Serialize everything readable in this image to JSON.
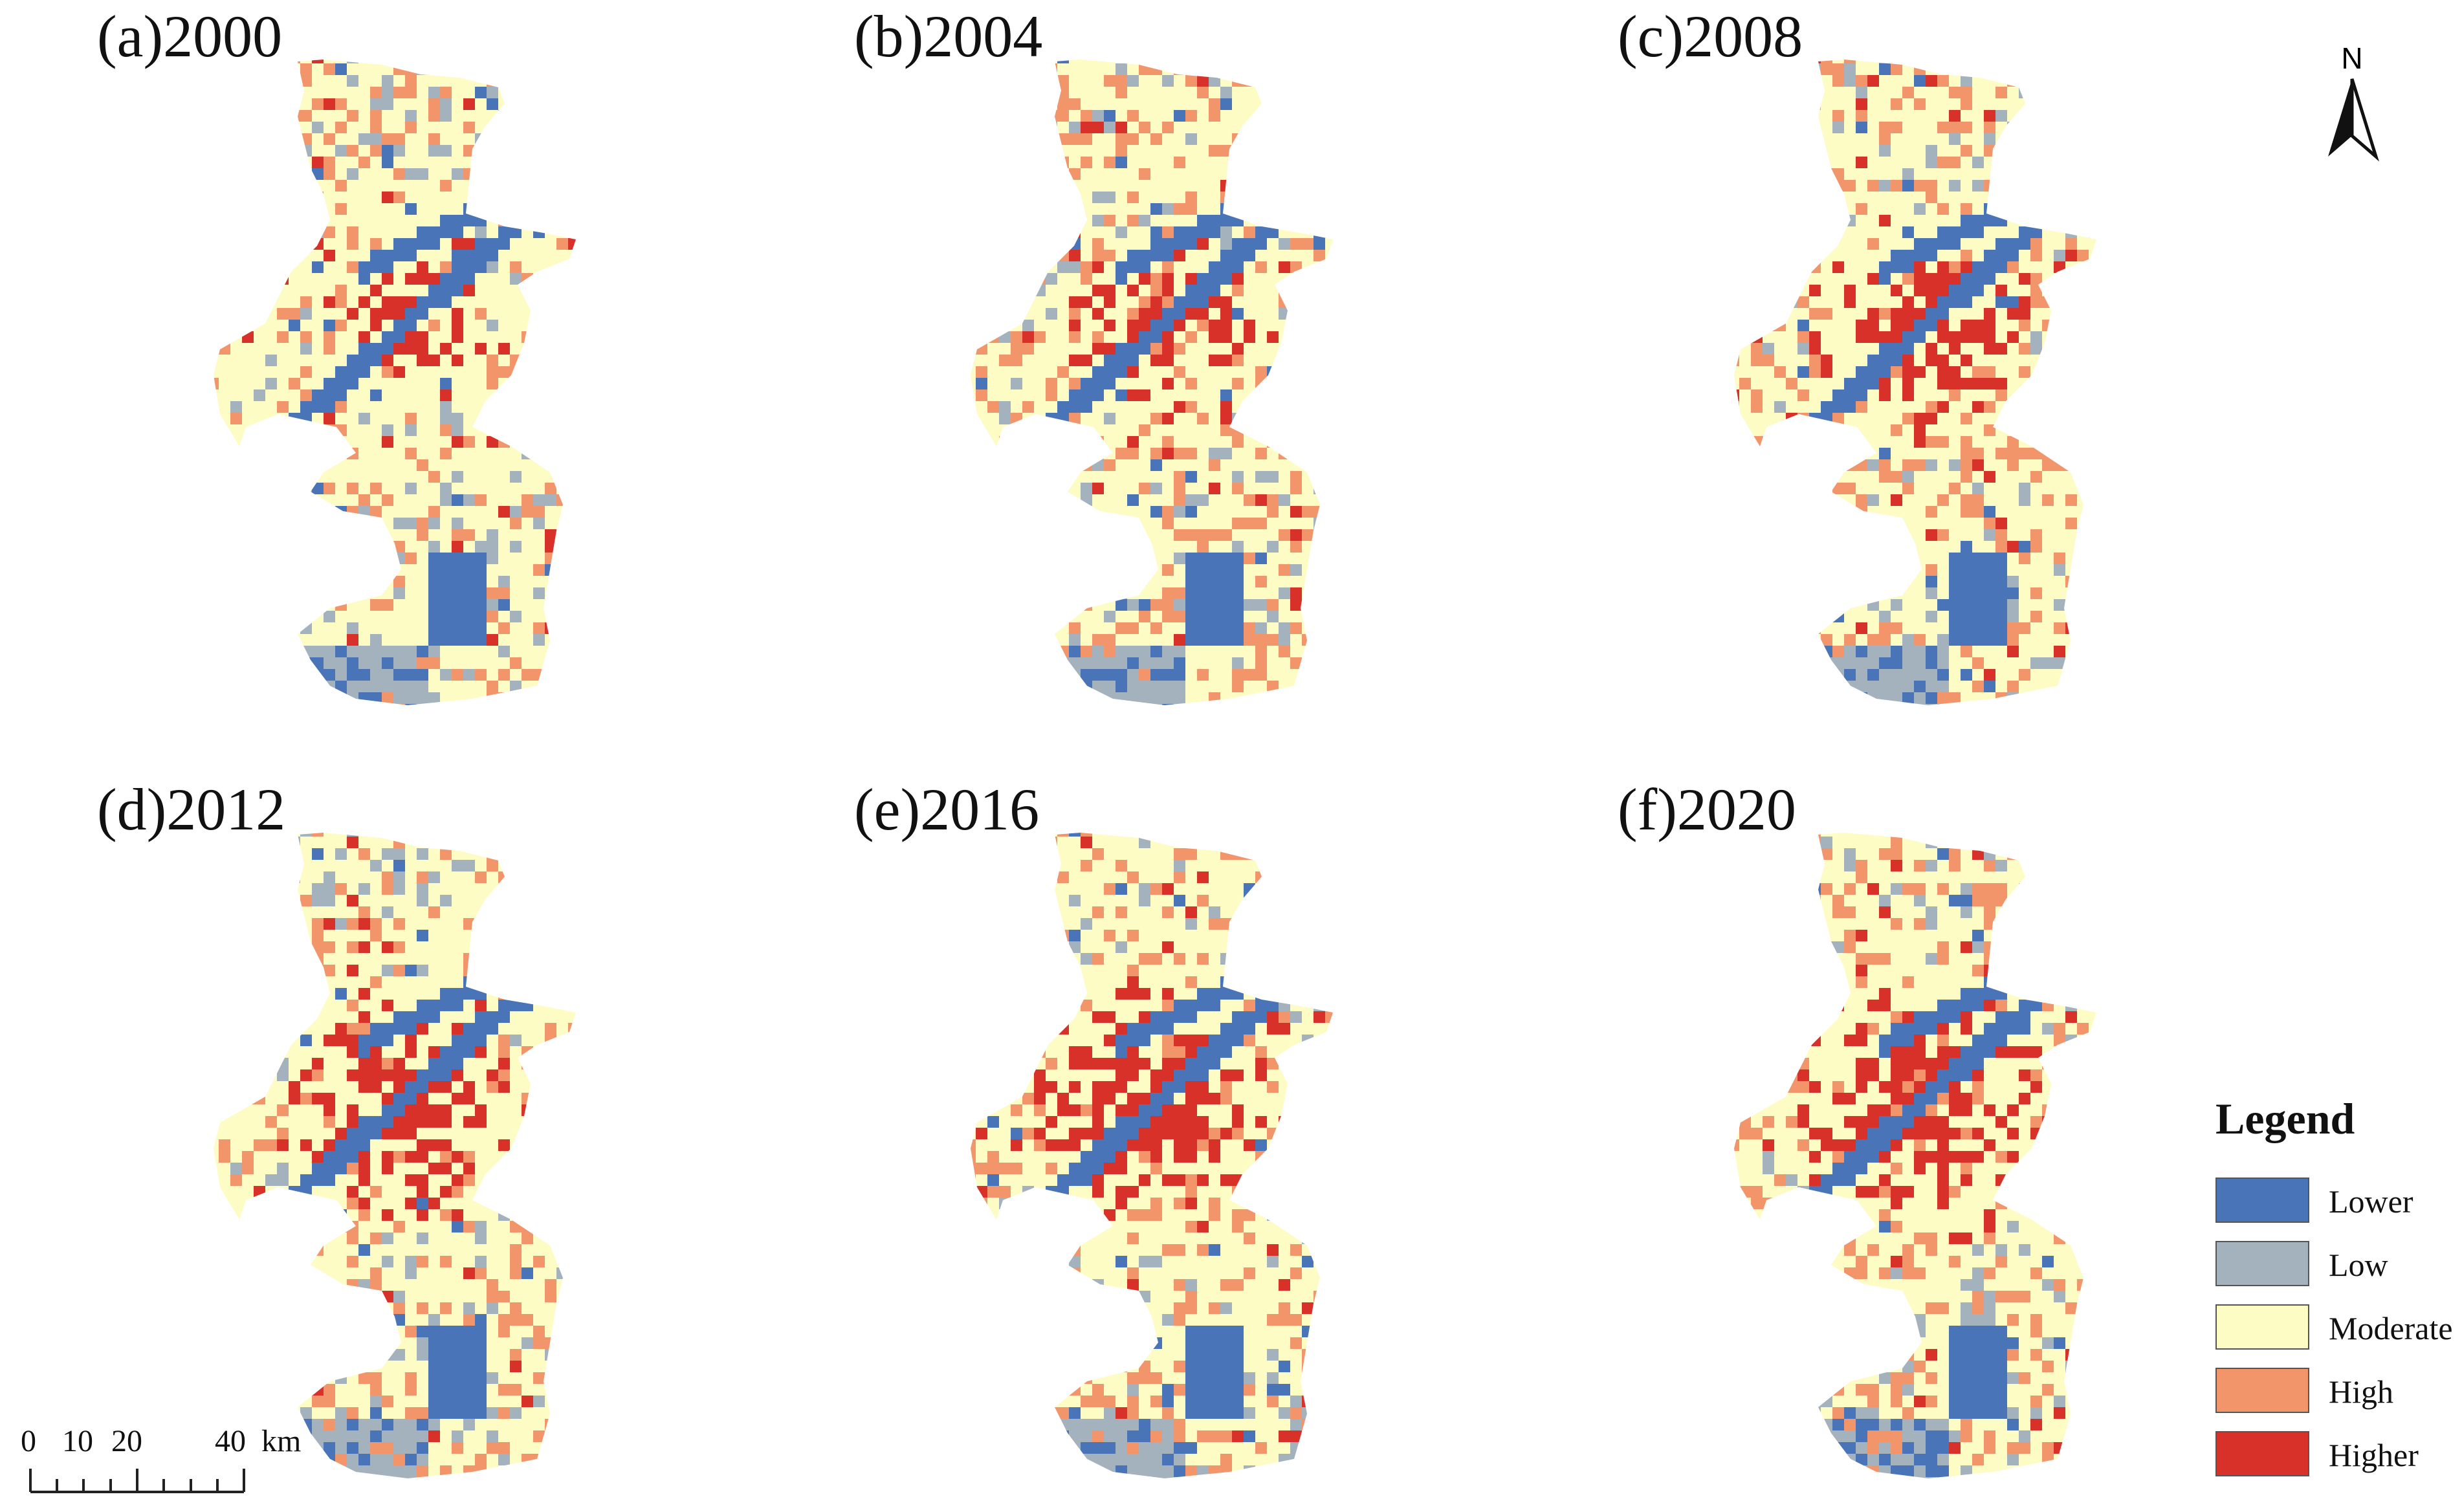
{
  "panels": [
    {
      "label": "(a)2000"
    },
    {
      "label": "(b)2004"
    },
    {
      "label": "(c)2008"
    },
    {
      "label": "(d)2012"
    },
    {
      "label": "(e)2016"
    },
    {
      "label": "(f)2020"
    }
  ],
  "north_arrow": {
    "label": "N"
  },
  "legend": {
    "title": "Legend",
    "items": [
      {
        "label": "Lower",
        "color": "#4a74b8"
      },
      {
        "label": "Low",
        "color": "#a3b2bd"
      },
      {
        "label": "Moderate",
        "color": "#fdfcc5"
      },
      {
        "label": "High",
        "color": "#f2956a"
      },
      {
        "label": "Higher",
        "color": "#d7312a"
      }
    ]
  },
  "scale_bar": {
    "ticks": [
      "0",
      "10",
      "20",
      "40"
    ],
    "unit": "km"
  }
}
